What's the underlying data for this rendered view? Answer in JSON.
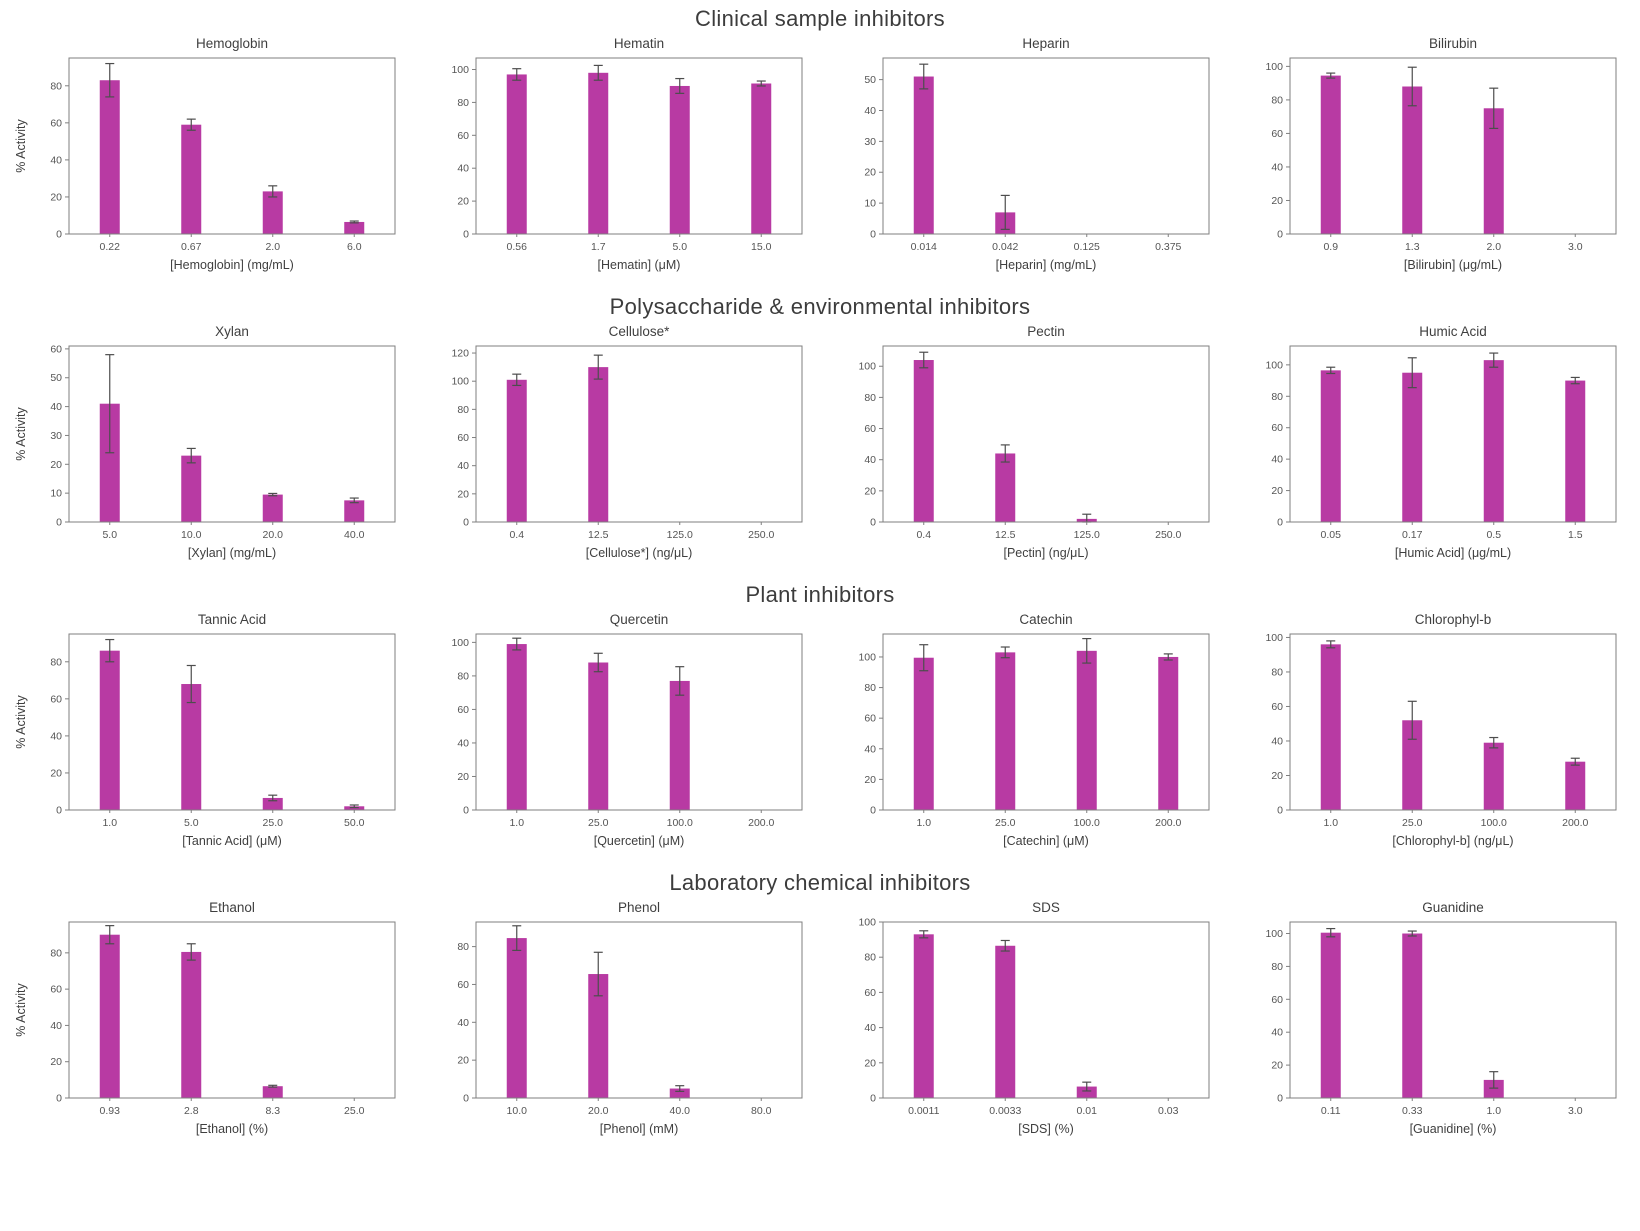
{
  "chart_data": {
    "type": "bar",
    "ylabel": "% Activity",
    "bar_color": "#b83aa3",
    "error_color": "#4d4d4d",
    "axis_color": "#7f7f7f",
    "tick_color": "#555555",
    "title_color": "#3f3f3f",
    "grid": false,
    "legend": "none",
    "sections": [
      {
        "title": "Clinical sample inhibitors",
        "charts": [
          {
            "title": "Hemoglobin",
            "xlabel": "[Hemoglobin] (mg/mL)",
            "show_ylabel": true,
            "categories": [
              "0.22",
              "0.67",
              "2.0",
              "6.0"
            ],
            "values": [
              83,
              59,
              23,
              6.5
            ],
            "errors": [
              9,
              3,
              3,
              0.5
            ],
            "yticks": [
              0,
              20,
              40,
              60,
              80
            ],
            "ylim": [
              0,
              95
            ]
          },
          {
            "title": "Hematin",
            "xlabel": "[Hematin] (μM)",
            "show_ylabel": false,
            "categories": [
              "0.56",
              "1.7",
              "5.0",
              "15.0"
            ],
            "values": [
              97,
              98,
              90,
              91.5
            ],
            "errors": [
              3.5,
              4.5,
              4.5,
              1.5
            ],
            "yticks": [
              0,
              20,
              40,
              60,
              80,
              100
            ],
            "ylim": [
              0,
              107
            ]
          },
          {
            "title": "Heparin",
            "xlabel": "[Heparin] (mg/mL)",
            "show_ylabel": false,
            "categories": [
              "0.014",
              "0.042",
              "0.125",
              "0.375"
            ],
            "values": [
              51,
              7,
              0,
              0
            ],
            "errors": [
              4,
              5.5,
              0,
              0
            ],
            "yticks": [
              0,
              10,
              20,
              30,
              40,
              50
            ],
            "ylim": [
              0,
              57
            ]
          },
          {
            "title": "Bilirubin",
            "xlabel": "[Bilirubin] (μg/mL)",
            "show_ylabel": false,
            "categories": [
              "0.9",
              "1.3",
              "2.0",
              "3.0"
            ],
            "values": [
              94.5,
              88,
              75,
              0
            ],
            "errors": [
              1.5,
              11.5,
              12,
              0
            ],
            "yticks": [
              0,
              20,
              40,
              60,
              80,
              100
            ],
            "ylim": [
              0,
              105
            ]
          }
        ]
      },
      {
        "title": "Polysaccharide & environmental inhibitors",
        "charts": [
          {
            "title": "Xylan",
            "xlabel": "[Xylan] (mg/mL)",
            "show_ylabel": true,
            "categories": [
              "5.0",
              "10.0",
              "20.0",
              "40.0"
            ],
            "values": [
              41,
              23,
              9.5,
              7.5
            ],
            "errors": [
              17,
              2.5,
              0.4,
              0.8
            ],
            "yticks": [
              0,
              10,
              20,
              30,
              40,
              50,
              60
            ],
            "ylim": [
              0,
              61
            ]
          },
          {
            "title": "Cellulose*",
            "xlabel": "[Cellulose*] (ng/μL)",
            "show_ylabel": false,
            "categories": [
              "0.4",
              "12.5",
              "125.0",
              "250.0"
            ],
            "values": [
              101,
              110,
              0,
              0
            ],
            "errors": [
              4,
              8.5,
              0,
              0
            ],
            "yticks": [
              0,
              20,
              40,
              60,
              80,
              100,
              120
            ],
            "ylim": [
              0,
              125
            ]
          },
          {
            "title": "Pectin",
            "xlabel": "[Pectin] (ng/μL)",
            "show_ylabel": false,
            "categories": [
              "0.4",
              "12.5",
              "125.0",
              "250.0"
            ],
            "values": [
              104,
              44,
              2,
              0
            ],
            "errors": [
              5,
              5.5,
              3,
              0
            ],
            "yticks": [
              0,
              20,
              40,
              60,
              80,
              100
            ],
            "ylim": [
              0,
              113
            ]
          },
          {
            "title": "Humic Acid",
            "xlabel": "[Humic Acid] (μg/mL)",
            "show_ylabel": false,
            "categories": [
              "0.05",
              "0.17",
              "0.5",
              "1.5"
            ],
            "values": [
              96.5,
              95,
              103,
              90
            ],
            "errors": [
              2,
              9.5,
              4.5,
              2
            ],
            "yticks": [
              0,
              20,
              40,
              60,
              80,
              100
            ],
            "ylim": [
              0,
              112
            ]
          }
        ]
      },
      {
        "title": "Plant inhibitors",
        "charts": [
          {
            "title": "Tannic Acid",
            "xlabel": "[Tannic Acid] (μM)",
            "show_ylabel": true,
            "categories": [
              "1.0",
              "5.0",
              "25.0",
              "50.0"
            ],
            "values": [
              86,
              68,
              6.5,
              2
            ],
            "errors": [
              6,
              10,
              1.5,
              0.7
            ],
            "yticks": [
              0,
              20,
              40,
              60,
              80
            ],
            "ylim": [
              0,
              95
            ]
          },
          {
            "title": "Quercetin",
            "xlabel": "[Quercetin] (μM)",
            "show_ylabel": false,
            "categories": [
              "1.0",
              "25.0",
              "100.0",
              "200.0"
            ],
            "values": [
              99,
              88,
              77,
              0
            ],
            "errors": [
              3.5,
              5.5,
              8.5,
              0
            ],
            "yticks": [
              0,
              20,
              40,
              60,
              80,
              100
            ],
            "ylim": [
              0,
              105
            ]
          },
          {
            "title": "Catechin",
            "xlabel": "[Catechin] (μM)",
            "show_ylabel": false,
            "categories": [
              "1.0",
              "25.0",
              "100.0",
              "200.0"
            ],
            "values": [
              99.5,
              103,
              104,
              100
            ],
            "errors": [
              8.5,
              3.5,
              8,
              2
            ],
            "yticks": [
              0,
              20,
              40,
              60,
              80,
              100
            ],
            "ylim": [
              0,
              115
            ]
          },
          {
            "title": "Chlorophyl-b",
            "xlabel": "[Chlorophyl-b] (ng/μL)",
            "show_ylabel": false,
            "categories": [
              "1.0",
              "25.0",
              "100.0",
              "200.0"
            ],
            "values": [
              96,
              52,
              39,
              28
            ],
            "errors": [
              2,
              11,
              3,
              2
            ],
            "yticks": [
              0,
              20,
              40,
              60,
              80,
              100
            ],
            "ylim": [
              0,
              102
            ]
          }
        ]
      },
      {
        "title": "Laboratory chemical inhibitors",
        "charts": [
          {
            "title": "Ethanol",
            "xlabel": "[Ethanol] (%)",
            "show_ylabel": true,
            "categories": [
              "0.93",
              "2.8",
              "8.3",
              "25.0"
            ],
            "values": [
              90,
              80.5,
              6.5,
              0
            ],
            "errors": [
              5,
              4.5,
              0.5,
              0
            ],
            "yticks": [
              0,
              20,
              40,
              60,
              80
            ],
            "ylim": [
              0,
              97
            ]
          },
          {
            "title": "Phenol",
            "xlabel": "[Phenol] (mM)",
            "show_ylabel": false,
            "categories": [
              "10.0",
              "20.0",
              "40.0",
              "80.0"
            ],
            "values": [
              84.5,
              65.5,
              5,
              0
            ],
            "errors": [
              6.5,
              11.5,
              1.5,
              0
            ],
            "yticks": [
              0,
              20,
              40,
              60,
              80
            ],
            "ylim": [
              0,
              93
            ]
          },
          {
            "title": "SDS",
            "xlabel": "[SDS] (%)",
            "show_ylabel": false,
            "categories": [
              "0.0011",
              "0.0033",
              "0.01",
              "0.03"
            ],
            "values": [
              93,
              86.5,
              6.5,
              0
            ],
            "errors": [
              2,
              3,
              2.5,
              0
            ],
            "yticks": [
              0,
              20,
              40,
              60,
              80,
              100
            ],
            "ylim": [
              0,
              100
            ]
          },
          {
            "title": "Guanidine",
            "xlabel": "[Guanidine] (%)",
            "show_ylabel": false,
            "categories": [
              "0.11",
              "0.33",
              "1.0",
              "3.0"
            ],
            "values": [
              100.5,
              100,
              11,
              0
            ],
            "errors": [
              2.5,
              1.5,
              5,
              0
            ],
            "yticks": [
              0,
              20,
              40,
              60,
              80,
              100
            ],
            "ylim": [
              0,
              107
            ]
          }
        ]
      }
    ]
  }
}
